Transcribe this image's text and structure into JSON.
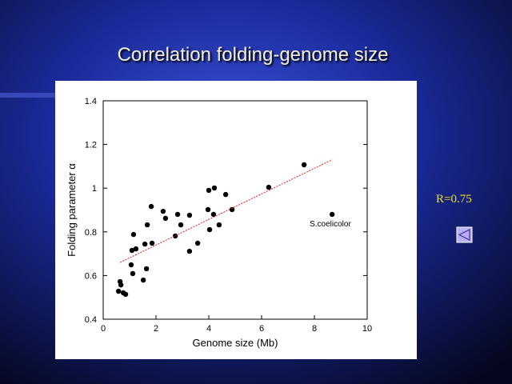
{
  "chart_data": {
    "type": "scatter",
    "title": "Correlation folding-genome size",
    "x_label": "Genome size (Mb)",
    "y_label": "Folding parameter α",
    "annotations": [
      "S.coelicolor",
      "R=0.75"
    ],
    "xlim": [
      0,
      10
    ],
    "xticks": [
      0,
      2,
      4,
      6,
      8,
      10
    ],
    "ylim": [
      0.4,
      1.4
    ],
    "yticks": [
      0.4,
      0.6,
      0.8,
      1,
      1.2,
      1.4
    ],
    "series": [
      {
        "color": "#000000",
        "x": [
          0.58,
          0.67,
          0.64,
          0.76,
          0.85,
          1.06,
          1.12,
          1.09,
          1.15,
          1.24,
          1.52,
          1.64,
          1.58,
          1.67,
          1.82,
          1.85,
          2.27,
          2.36,
          2.73,
          2.82,
          2.94,
          3.27,
          3.27,
          3.58,
          3.97,
          4.0,
          4.03,
          4.21,
          4.18,
          4.39,
          4.64,
          4.88,
          6.27,
          7.61,
          8.67
        ],
        "values": [
          0.528,
          0.557,
          0.572,
          0.521,
          0.514,
          0.649,
          0.609,
          0.715,
          0.788,
          0.722,
          0.579,
          0.631,
          0.744,
          0.832,
          0.916,
          0.748,
          0.894,
          0.862,
          0.781,
          0.88,
          0.832,
          0.876,
          0.711,
          0.748,
          0.902,
          0.99,
          0.81,
          1.001,
          0.88,
          0.832,
          0.971,
          0.902,
          1.004,
          1.107,
          0.88
        ]
      },
      {
        "color": "#e02020",
        "x": [
          0.64,
          8.67
        ],
        "values": [
          0.66,
          1.13
        ]
      }
    ]
  }
}
